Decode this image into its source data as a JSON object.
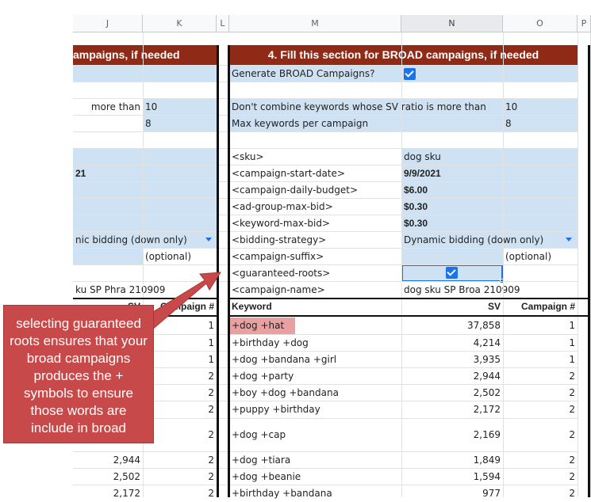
{
  "columns": [
    {
      "id": "J",
      "label": "J"
    },
    {
      "id": "K",
      "label": "K"
    },
    {
      "id": "L",
      "label": "L"
    },
    {
      "id": "M",
      "label": "M"
    },
    {
      "id": "N",
      "label": "N"
    },
    {
      "id": "O",
      "label": "O"
    },
    {
      "id": "P",
      "label": "P"
    }
  ],
  "left_section": {
    "header": "ampaigns, if needed",
    "combine_label": "more than",
    "combine_value": "10",
    "max_value": "8",
    "date_fragment": "21",
    "bidding_fragment": "nic bidding (down only)",
    "suffix_placeholder": "(optional)",
    "name_fragment": "ku SP Phra 210909",
    "table_sv_header": "SV",
    "table_campaign_header": "Campaign #",
    "rows": [
      {
        "sv": "",
        "campaign": "1"
      },
      {
        "sv": "",
        "campaign": "1"
      },
      {
        "sv": "",
        "campaign": "1"
      },
      {
        "sv": "",
        "campaign": "2"
      },
      {
        "sv": "",
        "campaign": "2"
      },
      {
        "sv": "",
        "campaign": "2"
      },
      {
        "sv": "",
        "campaign": "2"
      },
      {
        "sv": "2,944",
        "campaign": "2"
      },
      {
        "sv": "2,502",
        "campaign": "2"
      },
      {
        "sv": "2,172",
        "campaign": "2"
      }
    ]
  },
  "broad_section": {
    "header": "4. Fill this section for BROAD campaigns, if needed",
    "generate_label": "Generate BROAD Campaigns?",
    "generate_checked": true,
    "combine_label": "Don't combine keywords whose SV ratio is more than",
    "combine_value": "10",
    "max_label": "Max keywords per campaign",
    "max_value": "8",
    "params": [
      {
        "label": "<sku>",
        "value": "dog sku"
      },
      {
        "label": "<campaign-start-date>",
        "value": "9/9/2021"
      },
      {
        "label": "<campaign-daily-budget>",
        "value": "$6.00"
      },
      {
        "label": "<ad-group-max-bid>",
        "value": "$0.30"
      },
      {
        "label": "<keyword-max-bid>",
        "value": "$0.30"
      },
      {
        "label": "<bidding-strategy>",
        "value": "Dynamic bidding (down only)"
      },
      {
        "label": "<campaign-suffix>",
        "value": "",
        "note": "(optional)"
      },
      {
        "label": "<guaranteed-roots>",
        "value": ""
      },
      {
        "label": "<campaign-name>",
        "value": "dog sku SP Broa 210909"
      }
    ],
    "table_headers": {
      "keyword": "Keyword",
      "sv": "SV",
      "campaign": "Campaign #"
    },
    "rows": [
      {
        "keyword": "+dog +hat",
        "sv": "37,858",
        "campaign": "1"
      },
      {
        "keyword": "+birthday +dog",
        "sv": "4,214",
        "campaign": "1"
      },
      {
        "keyword": "+dog +bandana +girl",
        "sv": "3,935",
        "campaign": "1"
      },
      {
        "keyword": "+dog +party",
        "sv": "2,944",
        "campaign": "2"
      },
      {
        "keyword": "+boy +dog +bandana",
        "sv": "2,502",
        "campaign": "2"
      },
      {
        "keyword": "+puppy +birthday",
        "sv": "2,172",
        "campaign": "2"
      },
      {
        "keyword": "+dog +cap",
        "sv": "2,169",
        "campaign": "2"
      },
      {
        "keyword": "+dog +tiara",
        "sv": "1,849",
        "campaign": "2"
      },
      {
        "keyword": "+dog +beanie",
        "sv": "1,594",
        "campaign": "2"
      },
      {
        "keyword": "+birthday +bandana",
        "sv": "977",
        "campaign": "2"
      }
    ]
  },
  "annotation": {
    "text": "selecting guaranteed roots ensures that your broad campaigns produces the + symbols to ensure those words are include in broad"
  },
  "colors": {
    "header_band": "#8e2a15",
    "input_fill": "#cfe2f3",
    "checkbox": "#1a73e8",
    "highlight_row": "#e8a0a0",
    "callout_fill": "#c8494a"
  }
}
